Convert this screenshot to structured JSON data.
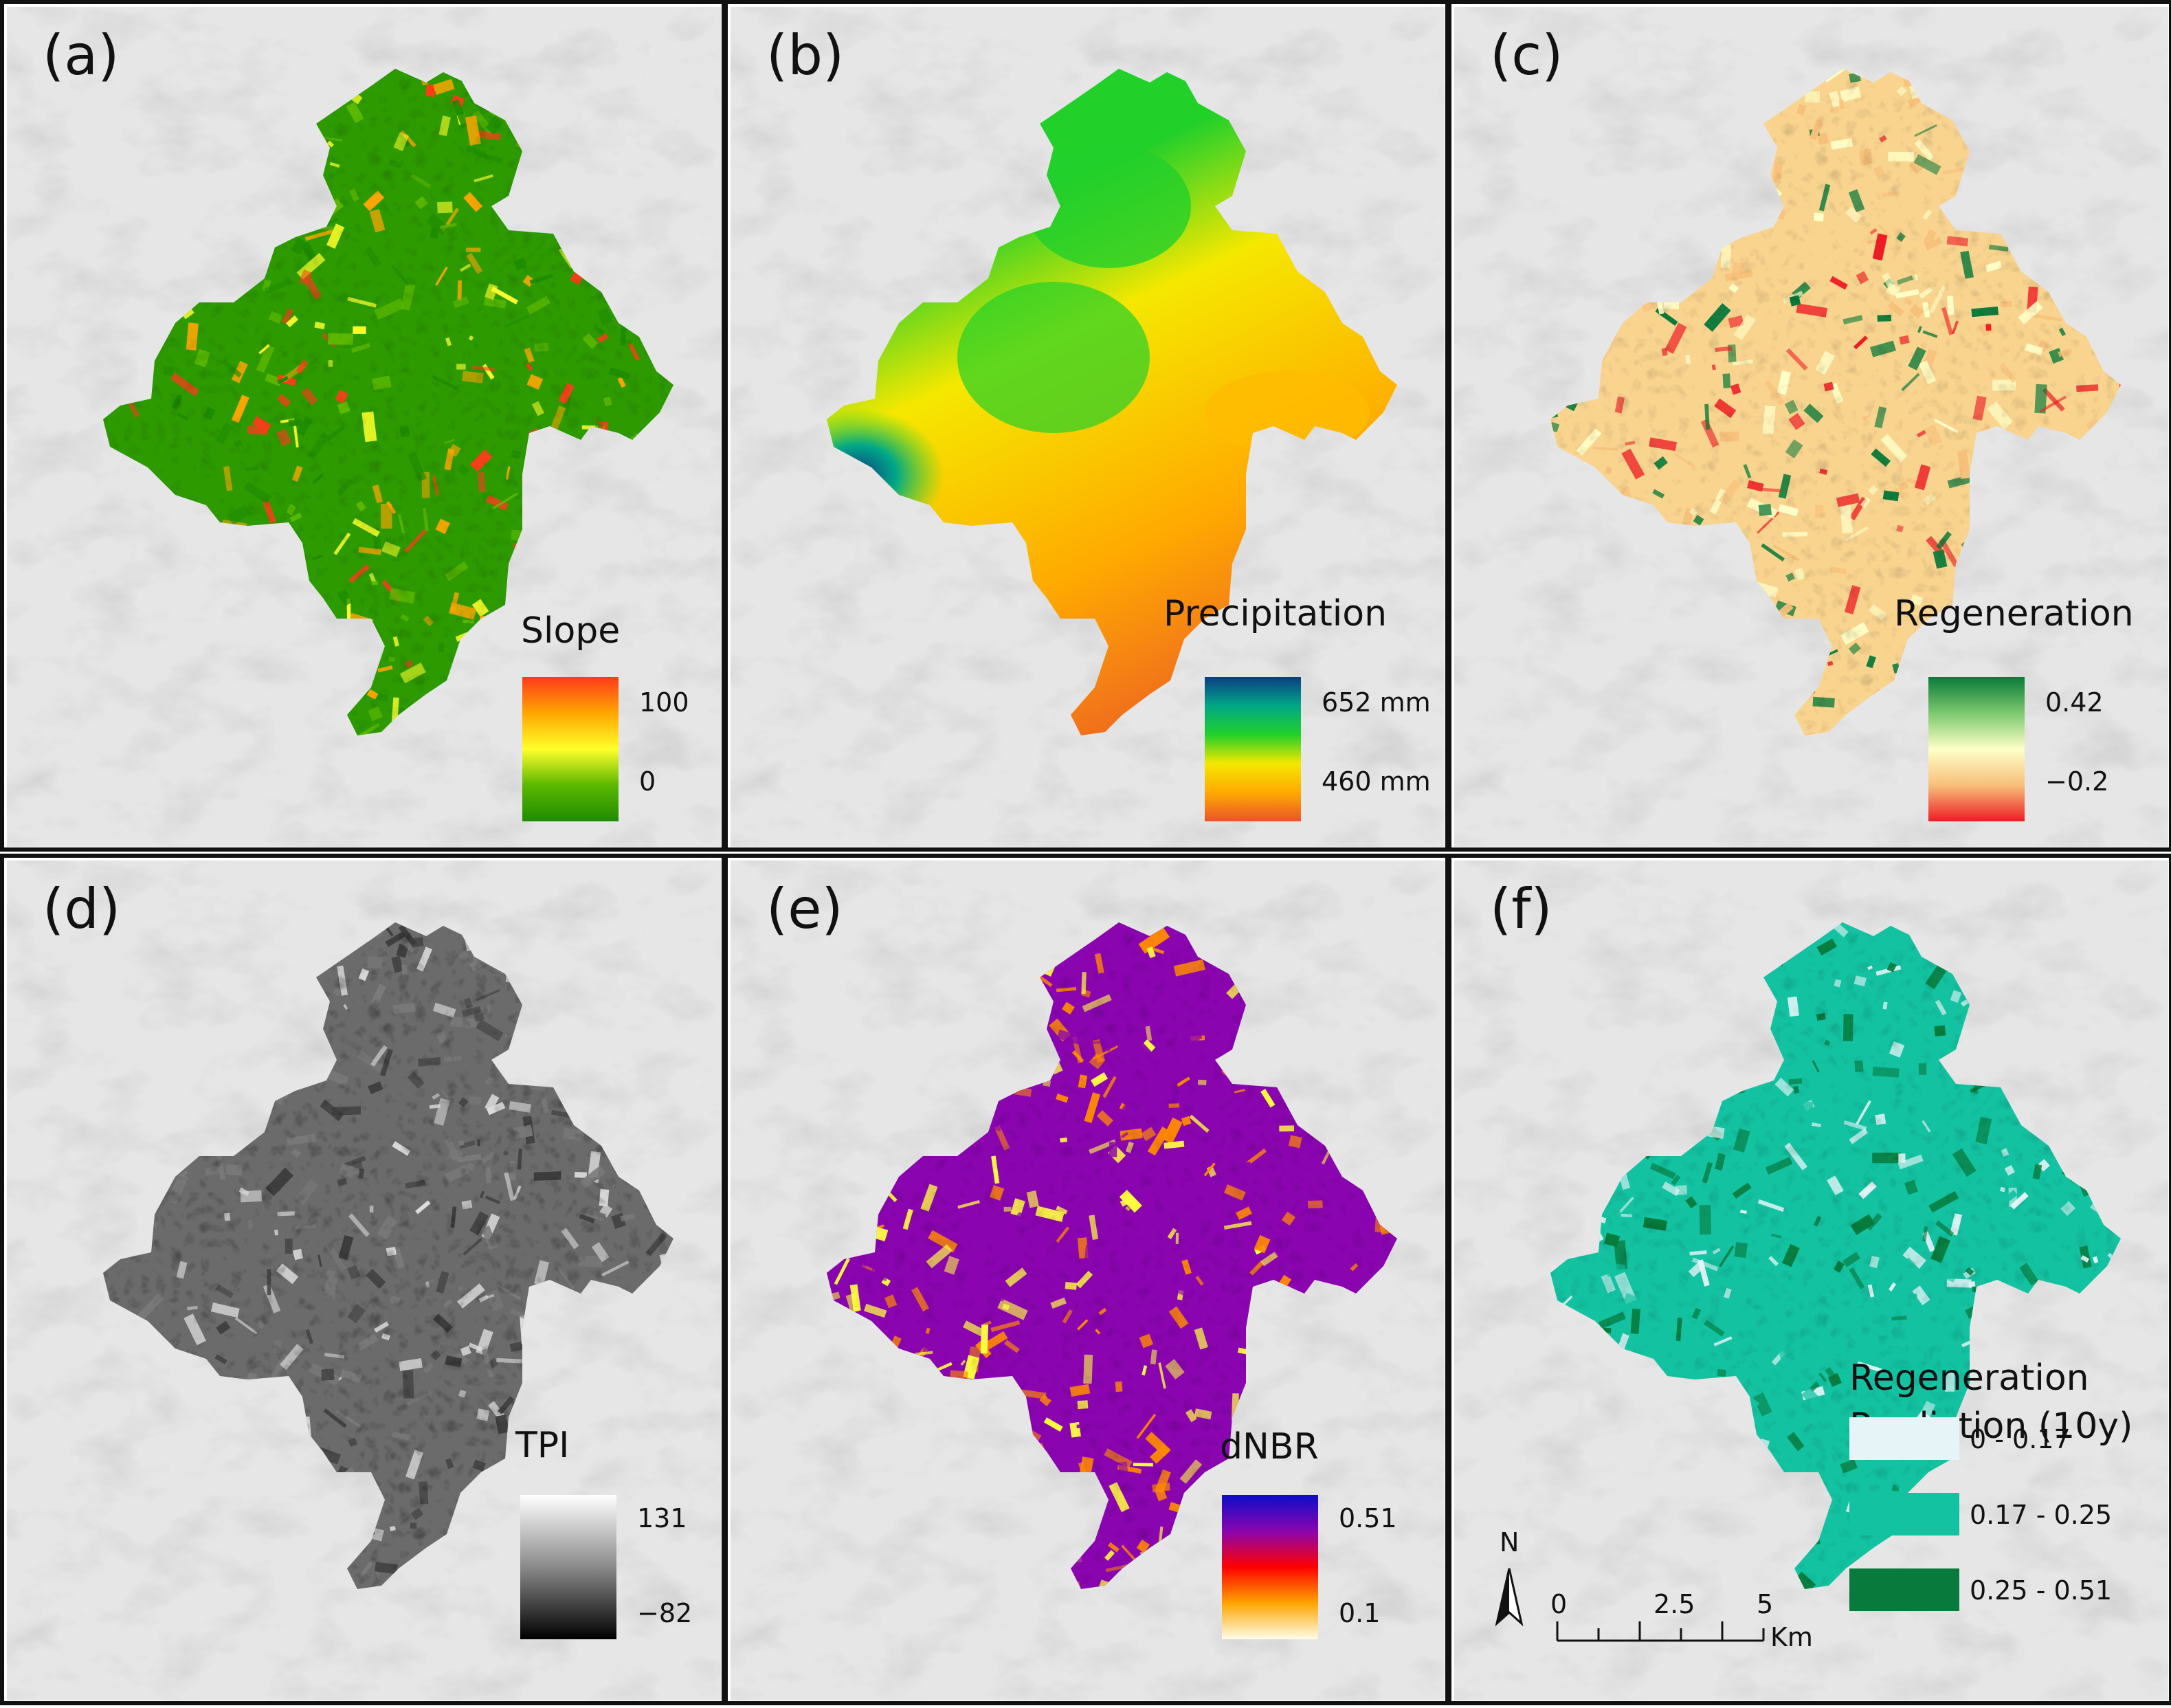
{
  "panels": [
    {
      "label": "(a)",
      "legend_title": "Slope",
      "ticks": [
        "100",
        "0"
      ],
      "ramp": [
        "#ff3a1a",
        "#ffa600",
        "#ffff2a",
        "#5cb800",
        "#1e8c00"
      ]
    },
    {
      "label": "(b)",
      "legend_title": "Precipitation",
      "ticks": [
        "652 mm",
        "460 mm"
      ],
      "ramp": [
        "#0c3d82",
        "#00a887",
        "#22d02a",
        "#f5e800",
        "#ffaa00",
        "#ea5528"
      ]
    },
    {
      "label": "(c)",
      "legend_title": "Regeneration",
      "ticks": [
        "0.42",
        "−0.2"
      ],
      "ramp": [
        "#0a7a3a",
        "#7cc96e",
        "#ffffc8",
        "#f7c07a",
        "#ee1c24"
      ]
    },
    {
      "label": "(d)",
      "legend_title": "TPI",
      "ticks": [
        "131",
        "−82"
      ],
      "ramp": [
        "#ffffff",
        "#8a8a8a",
        "#000000"
      ]
    },
    {
      "label": "(e)",
      "legend_title": "dNBR",
      "ticks": [
        "0.51",
        "0.1"
      ],
      "ramp": [
        "#0d0dc8",
        "#8a05b0",
        "#ff0000",
        "#ffa500",
        "#fffde8"
      ]
    },
    {
      "label": "(f)",
      "legend_title_lines": [
        "Regeneration",
        "Prediction (10y)"
      ],
      "classes": [
        {
          "label": "0 - 0.17",
          "color": "#e6f4f8"
        },
        {
          "label": "0.17 - 0.25",
          "color": "#13c2a1"
        },
        {
          "label": "0.25 - 0.51",
          "color": "#077a3c"
        }
      ]
    }
  ],
  "colors": {
    "basemap": "#e6e6e6",
    "relief": "#c9c9c9",
    "slope": [
      "#1e8c00",
      "#5cb800",
      "#ffff2a",
      "#ffa600",
      "#ff3a1a"
    ],
    "precip": [
      "#0c3d82",
      "#22d02a",
      "#f5e800",
      "#ffaa00",
      "#ea5528"
    ],
    "regen": [
      "#0a7a3a",
      "#ffffc8",
      "#f7c07a",
      "#ee1c24"
    ],
    "tpi": [
      "#3c3c3c",
      "#7a7a7a",
      "#dcdcdc"
    ],
    "dnbr": [
      "#8a05b0",
      "#ff8a00",
      "#ffff40"
    ],
    "prediction": [
      "#e6f4f8",
      "#13c2a1",
      "#077a3c"
    ]
  },
  "north_arrow": {
    "label": "N",
    "icon": "north-arrow-icon"
  },
  "scale_bar": {
    "ticks": [
      "0",
      "2.5",
      "5"
    ],
    "unit": "Km"
  }
}
